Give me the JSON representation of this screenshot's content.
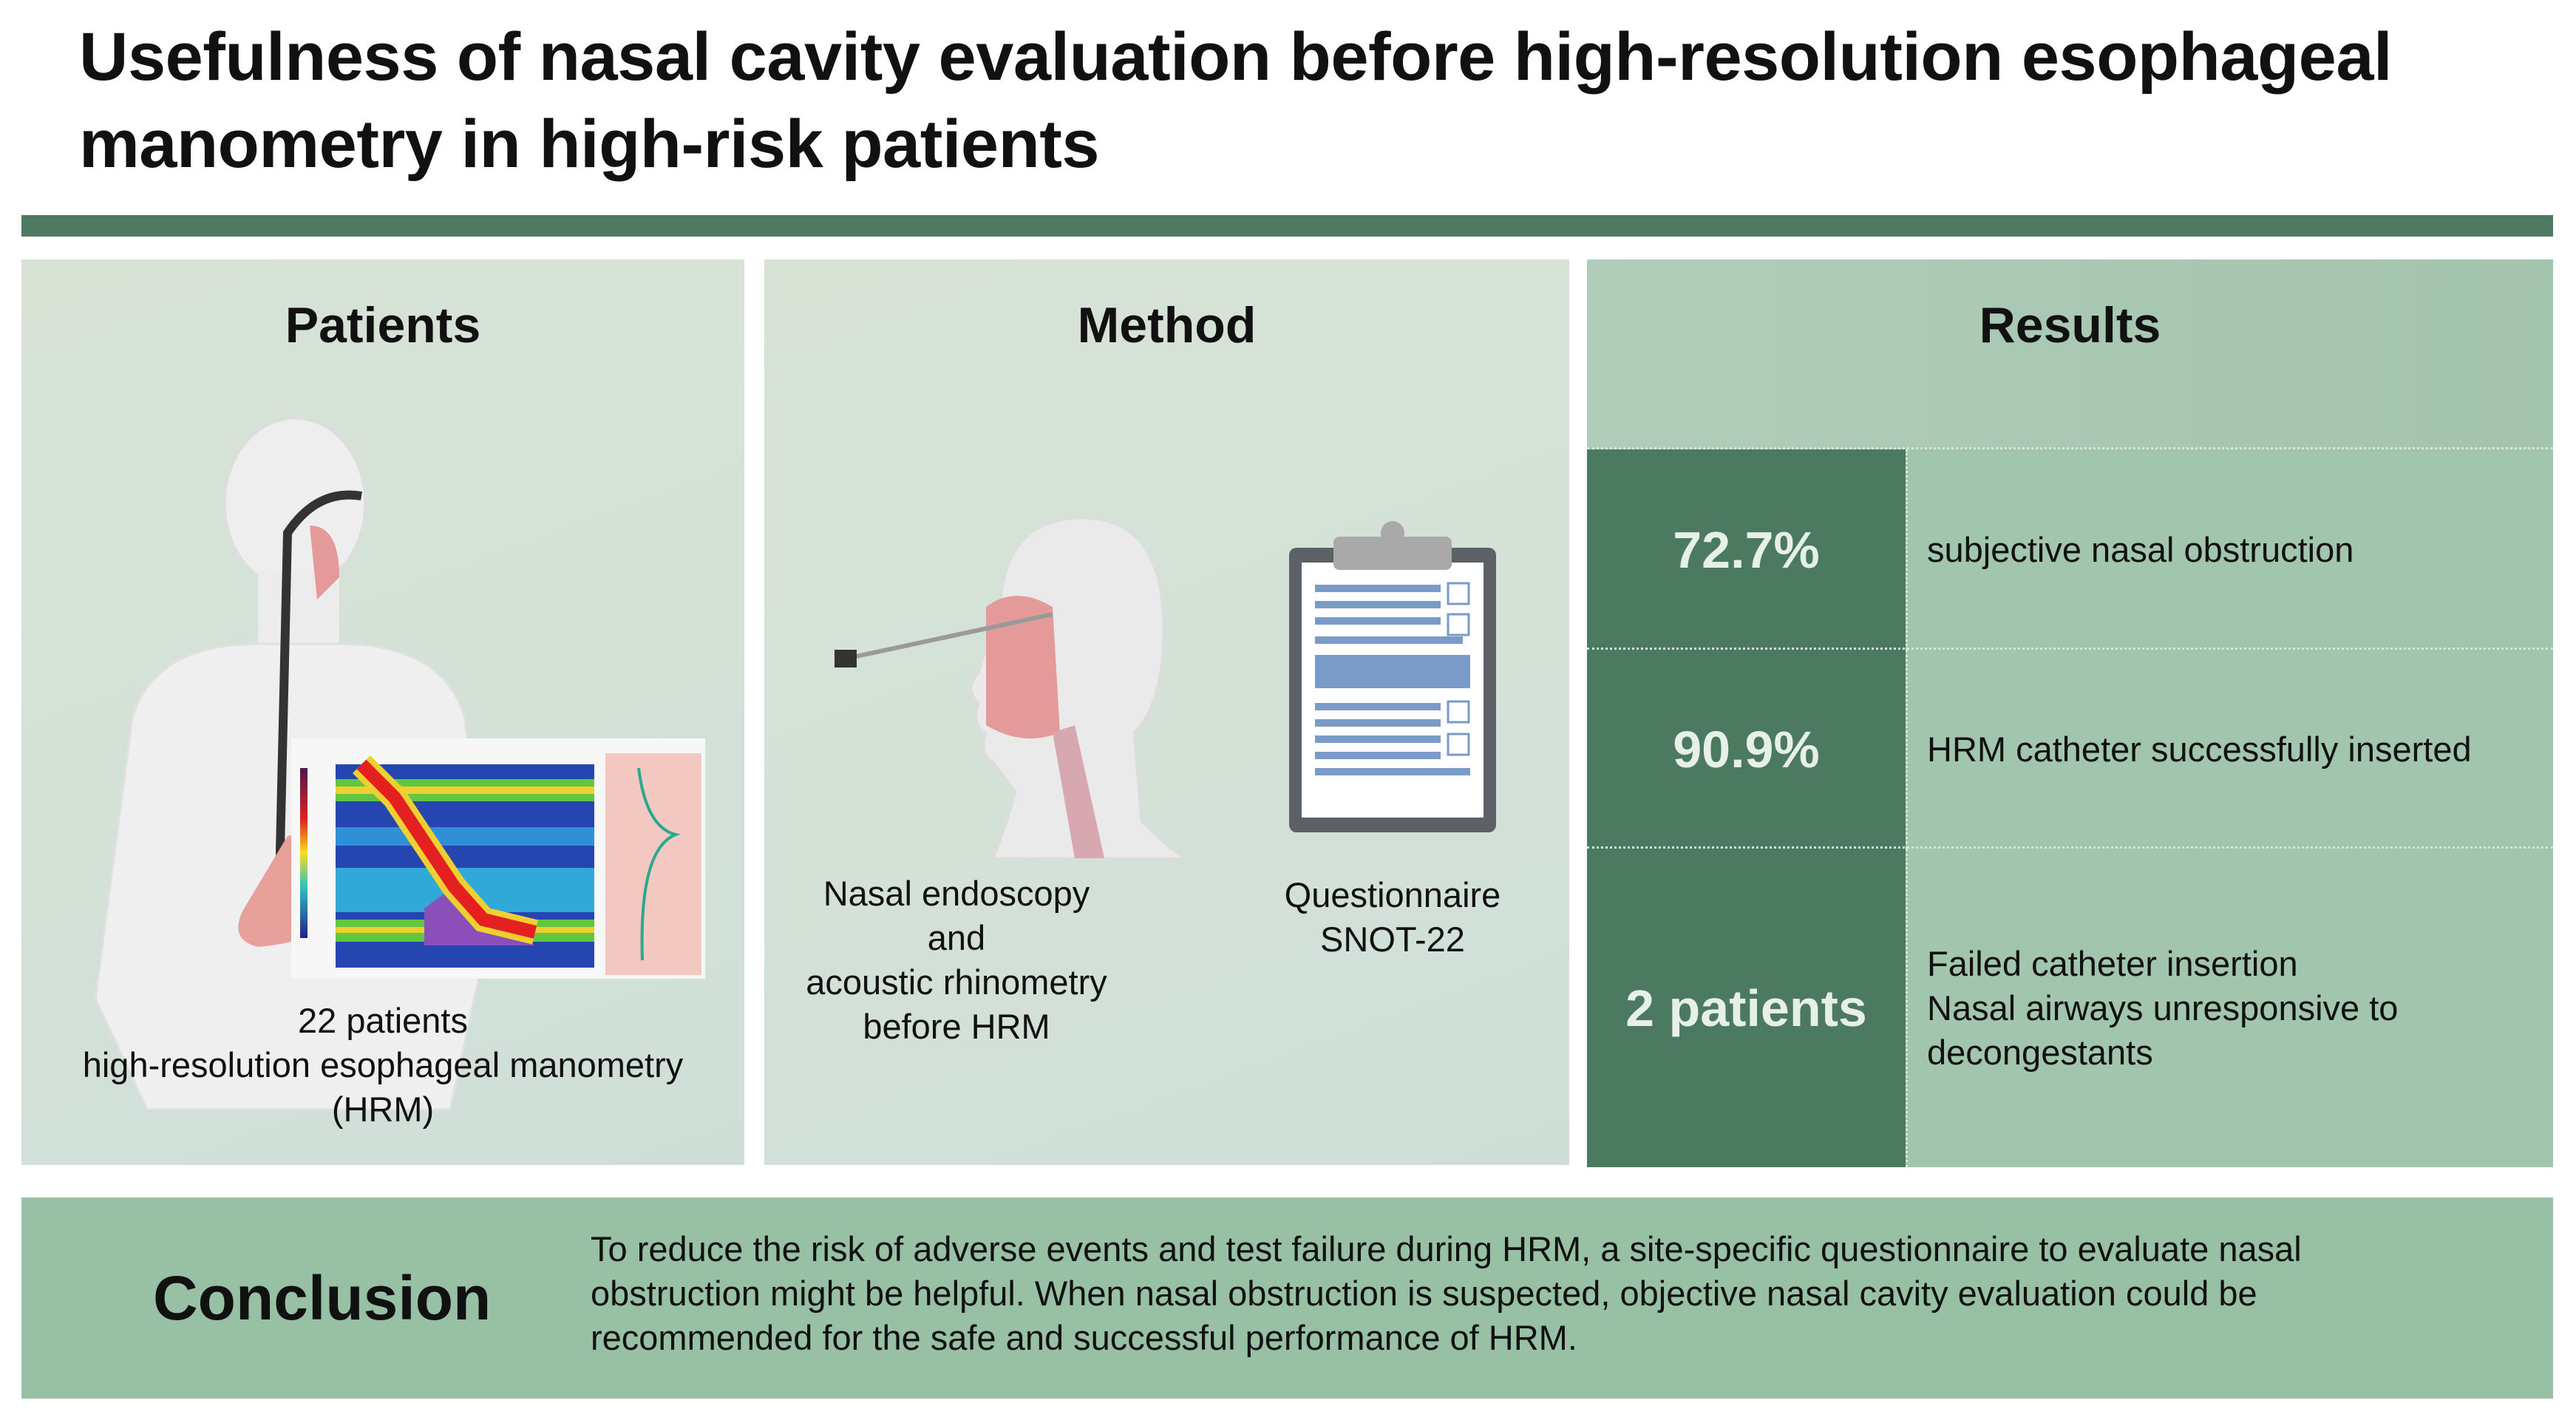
{
  "title": "Usefulness of nasal cavity evaluation before high-resolution esophageal manometry in high-risk patients",
  "colors": {
    "accent_bar": "#4d7a61",
    "results_dark": "#4b7a60",
    "results_light": "#a2c5ad",
    "conclusion_bg": "#98c0a5"
  },
  "patients": {
    "heading": "Patients",
    "count": "22 patients",
    "procedure": "high-resolution esophageal manometry",
    "abbr": "(HRM)",
    "illustration_icons": [
      "human-body-with-catheter-icon",
      "hrm-pressure-topography-plot"
    ]
  },
  "method": {
    "heading": "Method",
    "items": [
      {
        "icon": "nasal-endoscopy-head-icon",
        "lines": [
          "Nasal endoscopy and",
          "acoustic rhinometry",
          "before HRM"
        ]
      },
      {
        "icon": "clipboard-questionnaire-icon",
        "lines": [
          "Questionnaire",
          "SNOT-22"
        ]
      }
    ]
  },
  "results": {
    "heading": "Results",
    "rows": [
      {
        "value": "72.7%",
        "lines": [
          "subjective nasal obstruction"
        ]
      },
      {
        "value": "90.9%",
        "lines": [
          "HRM catheter successfully inserted"
        ]
      },
      {
        "value": "2 patients",
        "lines": [
          "Failed catheter insertion",
          "Nasal airways unresponsive to",
          "decongestants"
        ]
      }
    ]
  },
  "conclusion": {
    "label": "Conclusion",
    "lines": [
      "To reduce the risk of adverse events and test failure during HRM, a site-specific questionnaire to evaluate nasal",
      "obstruction might be helpful. When nasal obstruction is suspected, objective nasal cavity evaluation could be",
      "recommended for the safe and successful performance of HRM."
    ]
  }
}
